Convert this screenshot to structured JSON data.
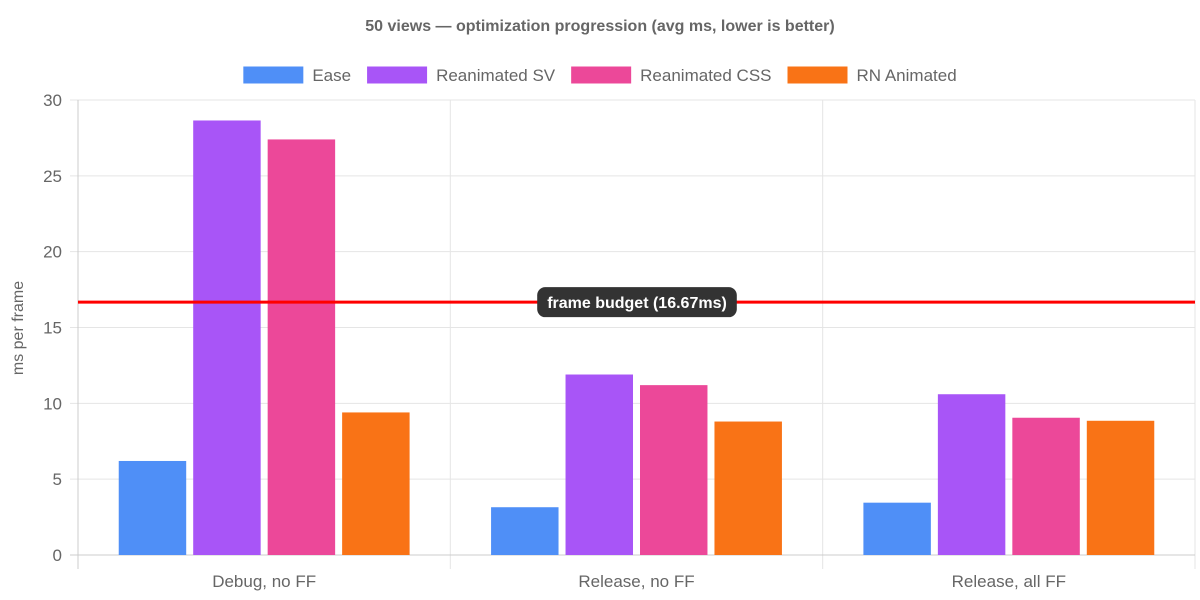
{
  "chart_data": {
    "type": "bar",
    "title": "50 views — optimization progression (avg ms, lower is better)",
    "xlabel": "",
    "ylabel": "ms per frame",
    "categories": [
      "Debug, no FF",
      "Release, no FF",
      "Release, all FF"
    ],
    "series": [
      {
        "name": "Ease",
        "color": "#4f8ff7",
        "values": [
          6.2,
          3.15,
          3.45
        ]
      },
      {
        "name": "Reanimated SV",
        "color": "#a855f7",
        "values": [
          28.65,
          11.9,
          10.6
        ]
      },
      {
        "name": "Reanimated CSS",
        "color": "#ec4899",
        "values": [
          27.4,
          11.2,
          9.05
        ]
      },
      {
        "name": "RN Animated",
        "color": "#f97316",
        "values": [
          9.4,
          8.8,
          8.85
        ]
      }
    ],
    "ylim": [
      0,
      30
    ],
    "yticks": [
      "0",
      "5",
      "10",
      "15",
      "20",
      "25",
      "30"
    ],
    "grid": true,
    "legend_position": "top",
    "annotation": {
      "value": 16.67,
      "label": "frame budget (16.67ms)",
      "line_color": "#ff0000",
      "label_bg": "#333333"
    }
  }
}
